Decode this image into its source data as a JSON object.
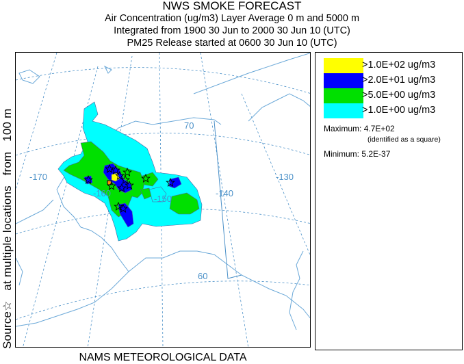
{
  "title": {
    "line1": "NWS SMOKE FORECAST",
    "line2": "Air Concentration (ug/m3) Layer Average    0 m and  5000 m",
    "line3": "Integrated from 1900 30 Jun to 2000 30 Jun 10 (UTC)",
    "line4": "PM25 Release started at 0600 30 Jun 10 (UTC)"
  },
  "side_label": {
    "source": "Source",
    "star_glyph": "☆",
    "locations": "at multiple locations",
    "from": "from",
    "height": "100 m"
  },
  "legend": {
    "items": [
      {
        "label": ">1.0E+02 ug/m3",
        "color": "#ffff00"
      },
      {
        "label": ">2.0E+01 ug/m3",
        "color": "#0000ff"
      },
      {
        "label": ">5.0E+00 ug/m3",
        "color": "#00e000"
      },
      {
        "label": ">1.0E+00 ug/m3",
        "color": "#00ffff"
      }
    ],
    "maximum_label": "Maximum:",
    "maximum_value": "4.7E+02",
    "maximum_note": "(identified as a square)",
    "minimum_label": "Minimum:",
    "minimum_value": "5.2E-37"
  },
  "map": {
    "latitude_labels": [
      "70",
      "60"
    ],
    "longitude_labels": [
      "-170",
      "-160",
      "-150",
      "-140",
      "-130"
    ],
    "colors": {
      "graticule": "#4a90c8",
      "land_outline": "#6aa8d8",
      "border": "#4a90c8",
      "contour_line": "#5060a0"
    }
  },
  "footer": "NAMS METEOROLOGICAL DATA"
}
